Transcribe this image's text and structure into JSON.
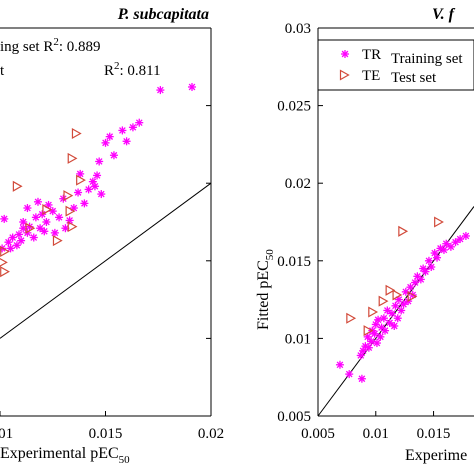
{
  "colors": {
    "training": "#ff00ff",
    "test": "#d24a3a",
    "line": "#000000"
  },
  "chart_data": [
    {
      "type": "scatter",
      "title": "P. subcapitata",
      "xlabel": "Experimental pEC",
      "xlabel_sub": "50",
      "ylabel": "",
      "xlim": [
        0.01,
        0.02
      ],
      "ylim": [
        0.005,
        0.03
      ],
      "xticks": [
        "0.01",
        "0.015",
        "0.02"
      ],
      "yticks": [],
      "grid": false,
      "fit_line": [
        [
          0.005,
          0.005
        ],
        [
          0.03,
          0.03
        ]
      ],
      "annotations": [
        "ing set R",
        "2",
        ": 0.889",
        "t",
        "R",
        "2",
        ": 0.811"
      ],
      "series": [
        {
          "name": "",
          "marker": "star",
          "points": [
            [
              0.0101,
              0.0158
            ],
            [
              0.0102,
              0.0177
            ],
            [
              0.0104,
              0.0162
            ],
            [
              0.0105,
              0.0158
            ],
            [
              0.0106,
              0.0165
            ],
            [
              0.0108,
              0.016
            ],
            [
              0.0109,
              0.0167
            ],
            [
              0.011,
              0.0163
            ],
            [
              0.0111,
              0.0171
            ],
            [
              0.0111,
              0.0175
            ],
            [
              0.0113,
              0.0168
            ],
            [
              0.0113,
              0.0184
            ],
            [
              0.0114,
              0.0172
            ],
            [
              0.0116,
              0.0165
            ],
            [
              0.0117,
              0.0178
            ],
            [
              0.0118,
              0.0188
            ],
            [
              0.0119,
              0.0171
            ],
            [
              0.012,
              0.018
            ],
            [
              0.0121,
              0.0169
            ],
            [
              0.0122,
              0.0175
            ],
            [
              0.0123,
              0.0186
            ],
            [
              0.0125,
              0.0182
            ],
            [
              0.0126,
              0.0168
            ],
            [
              0.0128,
              0.0178
            ],
            [
              0.013,
              0.019
            ],
            [
              0.0131,
              0.0171
            ],
            [
              0.0133,
              0.0176
            ],
            [
              0.0135,
              0.0184
            ],
            [
              0.0137,
              0.0194
            ],
            [
              0.0138,
              0.0206
            ],
            [
              0.014,
              0.0187
            ],
            [
              0.0142,
              0.0196
            ],
            [
              0.0144,
              0.0201
            ],
            [
              0.0145,
              0.0198
            ],
            [
              0.0146,
              0.0205
            ],
            [
              0.0147,
              0.0214
            ],
            [
              0.0148,
              0.0193
            ],
            [
              0.015,
              0.0226
            ],
            [
              0.0152,
              0.023
            ],
            [
              0.0154,
              0.0218
            ],
            [
              0.0158,
              0.0234
            ],
            [
              0.016,
              0.0227
            ],
            [
              0.0163,
              0.0236
            ],
            [
              0.0166,
              0.0239
            ],
            [
              0.0176,
              0.026
            ],
            [
              0.0191,
              0.0262
            ]
          ]
        },
        {
          "name": "",
          "marker": "triangle",
          "points": [
            [
              0.0102,
              0.0143
            ],
            [
              0.0101,
              0.0149
            ],
            [
              0.0102,
              0.0156
            ],
            [
              0.0108,
              0.0198
            ],
            [
              0.0114,
              0.0171
            ],
            [
              0.0122,
              0.0183
            ],
            [
              0.0127,
              0.0163
            ],
            [
              0.0133,
              0.0182
            ],
            [
              0.0134,
              0.0216
            ],
            [
              0.0136,
              0.0232
            ],
            [
              0.0138,
              0.0202
            ],
            [
              0.0132,
              0.0192
            ],
            [
              0.0134,
              0.0172
            ]
          ]
        }
      ]
    },
    {
      "type": "scatter",
      "title": "V. f",
      "xlabel": "Experime",
      "xlabel_sub": "",
      "ylabel": "Fitted pEC",
      "ylabel_sub": "50",
      "xlim": [
        0.005,
        0.0185
      ],
      "ylim": [
        0.005,
        0.03
      ],
      "xticks": [
        "0.005",
        "0.01",
        "0.015"
      ],
      "yticks": [
        "0.005",
        "0.01",
        "0.015",
        "0.02",
        "0.025",
        "0.03"
      ],
      "grid": false,
      "fit_line": [
        [
          0.005,
          0.005
        ],
        [
          0.0185,
          0.0185
        ]
      ],
      "legend": {
        "placement": "top-left",
        "short": [
          "TR",
          "TE"
        ],
        "long": [
          "Training set",
          "Test set"
        ]
      },
      "series": [
        {
          "name": "Training set",
          "marker": "star",
          "points": [
            [
              0.0069,
              0.0083
            ],
            [
              0.0077,
              0.0077
            ],
            [
              0.0087,
              0.0089
            ],
            [
              0.0088,
              0.0074
            ],
            [
              0.0089,
              0.0092
            ],
            [
              0.0091,
              0.0095
            ],
            [
              0.0093,
              0.0101
            ],
            [
              0.0094,
              0.0094
            ],
            [
              0.0096,
              0.0098
            ],
            [
              0.0097,
              0.0105
            ],
            [
              0.0099,
              0.0103
            ],
            [
              0.01,
              0.0109
            ],
            [
              0.0101,
              0.0097
            ],
            [
              0.0102,
              0.0112
            ],
            [
              0.0104,
              0.0101
            ],
            [
              0.0105,
              0.0107
            ],
            [
              0.0107,
              0.0113
            ],
            [
              0.0108,
              0.0105
            ],
            [
              0.011,
              0.0118
            ],
            [
              0.0112,
              0.011
            ],
            [
              0.0114,
              0.0116
            ],
            [
              0.0116,
              0.0108
            ],
            [
              0.0117,
              0.0121
            ],
            [
              0.0119,
              0.0113
            ],
            [
              0.012,
              0.0125
            ],
            [
              0.0122,
              0.0118
            ],
            [
              0.0124,
              0.0122
            ],
            [
              0.0126,
              0.013
            ],
            [
              0.0128,
              0.0124
            ],
            [
              0.013,
              0.0133
            ],
            [
              0.0132,
              0.0128
            ],
            [
              0.0134,
              0.0136
            ],
            [
              0.0136,
              0.014
            ],
            [
              0.0139,
              0.0138
            ],
            [
              0.0141,
              0.0145
            ],
            [
              0.0143,
              0.0143
            ],
            [
              0.0146,
              0.015
            ],
            [
              0.0148,
              0.0146
            ],
            [
              0.0151,
              0.0155
            ],
            [
              0.0153,
              0.0152
            ],
            [
              0.0156,
              0.0158
            ],
            [
              0.0159,
              0.0157
            ],
            [
              0.0161,
              0.0161
            ],
            [
              0.0165,
              0.0159
            ],
            [
              0.0169,
              0.0162
            ],
            [
              0.0173,
              0.0164
            ],
            [
              0.0178,
              0.0166
            ]
          ]
        },
        {
          "name": "Test set",
          "marker": "triangle",
          "points": [
            [
              0.0078,
              0.0113
            ],
            [
              0.0093,
              0.0105
            ],
            [
              0.0097,
              0.0117
            ],
            [
              0.0106,
              0.0124
            ],
            [
              0.0112,
              0.0131
            ],
            [
              0.0118,
              0.0128
            ],
            [
              0.0123,
              0.0169
            ],
            [
              0.0131,
              0.0127
            ],
            [
              0.0154,
              0.0175
            ]
          ]
        }
      ]
    }
  ]
}
